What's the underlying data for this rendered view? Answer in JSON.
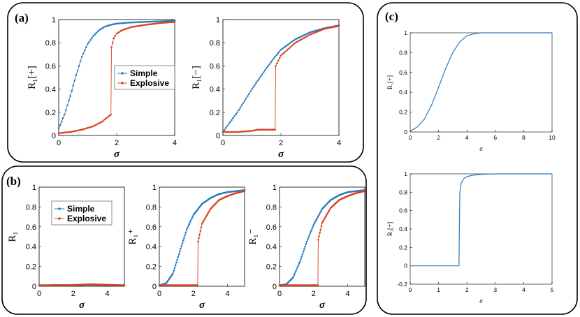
{
  "panels": {
    "a": {
      "label": "(a)"
    },
    "b": {
      "label": "(b)"
    },
    "c": {
      "label": "(c)"
    }
  },
  "colors": {
    "simple": "#2a79c0",
    "explosive": "#d9411e",
    "line": "#2a79c0"
  },
  "chart_data": [
    {
      "id": "a1",
      "panel": "a",
      "type": "line",
      "xlabel": "σ",
      "ylabel": "R₁[+]",
      "xlim": [
        0,
        4
      ],
      "ylim": [
        0,
        1
      ],
      "xticks": [
        "0",
        "2",
        "4"
      ],
      "yticks": [
        "0",
        "0.2",
        "0.4",
        "0.6",
        "0.8",
        "1"
      ],
      "legend": {
        "position": "right",
        "entries": [
          "Simple",
          "Explosive"
        ]
      },
      "series": [
        {
          "name": "Simple",
          "x": [
            0,
            0.2,
            0.4,
            0.6,
            0.8,
            1.0,
            1.2,
            1.4,
            1.6,
            1.8,
            2.0,
            2.5,
            3.0,
            3.5,
            4.0
          ],
          "values": [
            0.06,
            0.18,
            0.34,
            0.52,
            0.68,
            0.79,
            0.86,
            0.91,
            0.94,
            0.955,
            0.965,
            0.975,
            0.98,
            0.985,
            0.99
          ]
        },
        {
          "name": "Explosive",
          "x": [
            0,
            0.4,
            0.8,
            1.2,
            1.5,
            1.7,
            1.8,
            1.82,
            1.9,
            2.0,
            2.2,
            2.5,
            3.0,
            3.5,
            4.0
          ],
          "values": [
            0.02,
            0.03,
            0.05,
            0.08,
            0.12,
            0.16,
            0.18,
            0.76,
            0.84,
            0.88,
            0.91,
            0.935,
            0.955,
            0.97,
            0.98
          ]
        }
      ]
    },
    {
      "id": "a2",
      "panel": "a",
      "type": "line",
      "xlabel": "σ",
      "ylabel": "R₁[−]",
      "xlim": [
        0,
        4
      ],
      "ylim": [
        0,
        1
      ],
      "xticks": [
        "0",
        "2",
        "4"
      ],
      "yticks": [
        "0",
        "0.2",
        "0.4",
        "0.6",
        "0.8",
        "1"
      ],
      "series": [
        {
          "name": "Simple",
          "x": [
            0,
            0.2,
            0.5,
            1.0,
            1.5,
            1.8,
            2.0,
            2.5,
            3.0,
            3.5,
            4.0
          ],
          "values": [
            0.03,
            0.1,
            0.2,
            0.4,
            0.58,
            0.68,
            0.74,
            0.83,
            0.89,
            0.925,
            0.95
          ]
        },
        {
          "name": "Explosive",
          "x": [
            0,
            0.5,
            1.0,
            1.2,
            1.5,
            1.8,
            1.82,
            2.0,
            2.5,
            3.0,
            3.5,
            4.0
          ],
          "values": [
            0.03,
            0.03,
            0.04,
            0.05,
            0.05,
            0.05,
            0.6,
            0.69,
            0.8,
            0.87,
            0.92,
            0.945
          ]
        }
      ]
    },
    {
      "id": "b1",
      "panel": "b",
      "type": "line",
      "xlabel": "σ",
      "ylabel": "R₁",
      "xlim": [
        0,
        5
      ],
      "ylim": [
        0,
        1
      ],
      "xticks": [
        "0",
        "2",
        "4"
      ],
      "yticks": [
        "0",
        "0.2",
        "0.4",
        "0.6",
        "0.8",
        "1"
      ],
      "legend": {
        "position": "top-right",
        "entries": [
          "Simple",
          "Explosive"
        ]
      },
      "series": [
        {
          "name": "Simple",
          "x": [
            0,
            1,
            2,
            3,
            4,
            5
          ],
          "values": [
            0.01,
            0.012,
            0.01,
            0.015,
            0.012,
            0.01
          ]
        },
        {
          "name": "Explosive",
          "x": [
            0,
            1,
            2,
            3,
            4,
            5
          ],
          "values": [
            0.008,
            0.01,
            0.012,
            0.02,
            0.015,
            0.01
          ]
        }
      ]
    },
    {
      "id": "b2",
      "panel": "b",
      "type": "line",
      "xlabel": "σ",
      "ylabel": "R₁⁺",
      "xlim": [
        0,
        5
      ],
      "ylim": [
        0,
        1
      ],
      "xticks": [
        "0",
        "2",
        "4"
      ],
      "yticks": [
        "0",
        "0.2",
        "0.4",
        "0.6",
        "0.8",
        "1"
      ],
      "series": [
        {
          "name": "Simple",
          "x": [
            0,
            0.4,
            0.8,
            1.2,
            1.6,
            2.0,
            2.5,
            3.0,
            3.5,
            4.0,
            4.5,
            5.0
          ],
          "values": [
            0.01,
            0.03,
            0.13,
            0.35,
            0.57,
            0.72,
            0.83,
            0.89,
            0.93,
            0.95,
            0.96,
            0.97
          ]
        },
        {
          "name": "Explosive",
          "x": [
            0,
            0.5,
            1.0,
            1.5,
            2.0,
            2.25,
            2.27,
            2.5,
            3.0,
            3.5,
            4.0,
            4.5,
            5.0
          ],
          "values": [
            0.01,
            0.01,
            0.01,
            0.01,
            0.01,
            0.01,
            0.45,
            0.63,
            0.78,
            0.87,
            0.91,
            0.94,
            0.96
          ]
        }
      ]
    },
    {
      "id": "b3",
      "panel": "b",
      "type": "line",
      "xlabel": "σ",
      "ylabel": "R₁⁻",
      "xlim": [
        0,
        5
      ],
      "ylim": [
        0,
        1
      ],
      "xticks": [
        "0",
        "2",
        "4"
      ],
      "yticks": [
        "0",
        "0.2",
        "0.4",
        "0.6",
        "0.8",
        "1"
      ],
      "series": [
        {
          "name": "Simple",
          "x": [
            0,
            0.4,
            0.8,
            1.2,
            1.6,
            2.0,
            2.5,
            3.0,
            3.5,
            4.0,
            4.5,
            5.0
          ],
          "values": [
            0.01,
            0.02,
            0.09,
            0.25,
            0.45,
            0.62,
            0.78,
            0.87,
            0.92,
            0.95,
            0.96,
            0.97
          ]
        },
        {
          "name": "Explosive",
          "x": [
            0,
            0.5,
            1.0,
            1.5,
            2.0,
            2.25,
            2.27,
            2.5,
            3.0,
            3.5,
            4.0,
            4.5,
            5.0
          ],
          "values": [
            0.01,
            0.01,
            0.01,
            0.01,
            0.01,
            0.01,
            0.47,
            0.64,
            0.79,
            0.87,
            0.91,
            0.94,
            0.96
          ]
        }
      ]
    },
    {
      "id": "c1",
      "panel": "c",
      "type": "line",
      "xlabel": "σ",
      "ylabel": "R₁[+]",
      "xlim": [
        0,
        10
      ],
      "ylim": [
        0,
        1
      ],
      "xticks": [
        "0",
        "2",
        "4",
        "6",
        "8",
        "10"
      ],
      "yticks": [
        "0",
        "0.2",
        "0.4",
        "0.6",
        "0.8",
        "1"
      ],
      "series": [
        {
          "x": [
            0,
            0.5,
            1.0,
            1.5,
            2.0,
            2.5,
            3.0,
            3.5,
            4.0,
            4.5,
            5.0,
            6.0,
            8.0,
            10.0
          ],
          "values": [
            0.01,
            0.05,
            0.13,
            0.27,
            0.45,
            0.64,
            0.8,
            0.91,
            0.97,
            0.99,
            1.0,
            1.0,
            1.0,
            1.0
          ]
        }
      ]
    },
    {
      "id": "c2",
      "panel": "c",
      "type": "line",
      "xlabel": "σ",
      "ylabel": "R₁[+]",
      "xlim": [
        0,
        5
      ],
      "ylim": [
        -0.2,
        1
      ],
      "xticks": [
        "0",
        "1",
        "2",
        "3",
        "4",
        "5"
      ],
      "yticks": [
        "-0.2",
        "0",
        "0.2",
        "0.4",
        "0.6",
        "0.8",
        "1"
      ],
      "series": [
        {
          "x": [
            0,
            0.5,
            1.0,
            1.5,
            1.72,
            1.75,
            1.8,
            1.9,
            2.0,
            2.2,
            2.5,
            3.0,
            4.0,
            5.0
          ],
          "values": [
            0,
            0,
            0,
            0,
            0,
            0.8,
            0.9,
            0.95,
            0.97,
            0.985,
            0.995,
            1.0,
            1.0,
            1.0
          ]
        }
      ]
    }
  ]
}
